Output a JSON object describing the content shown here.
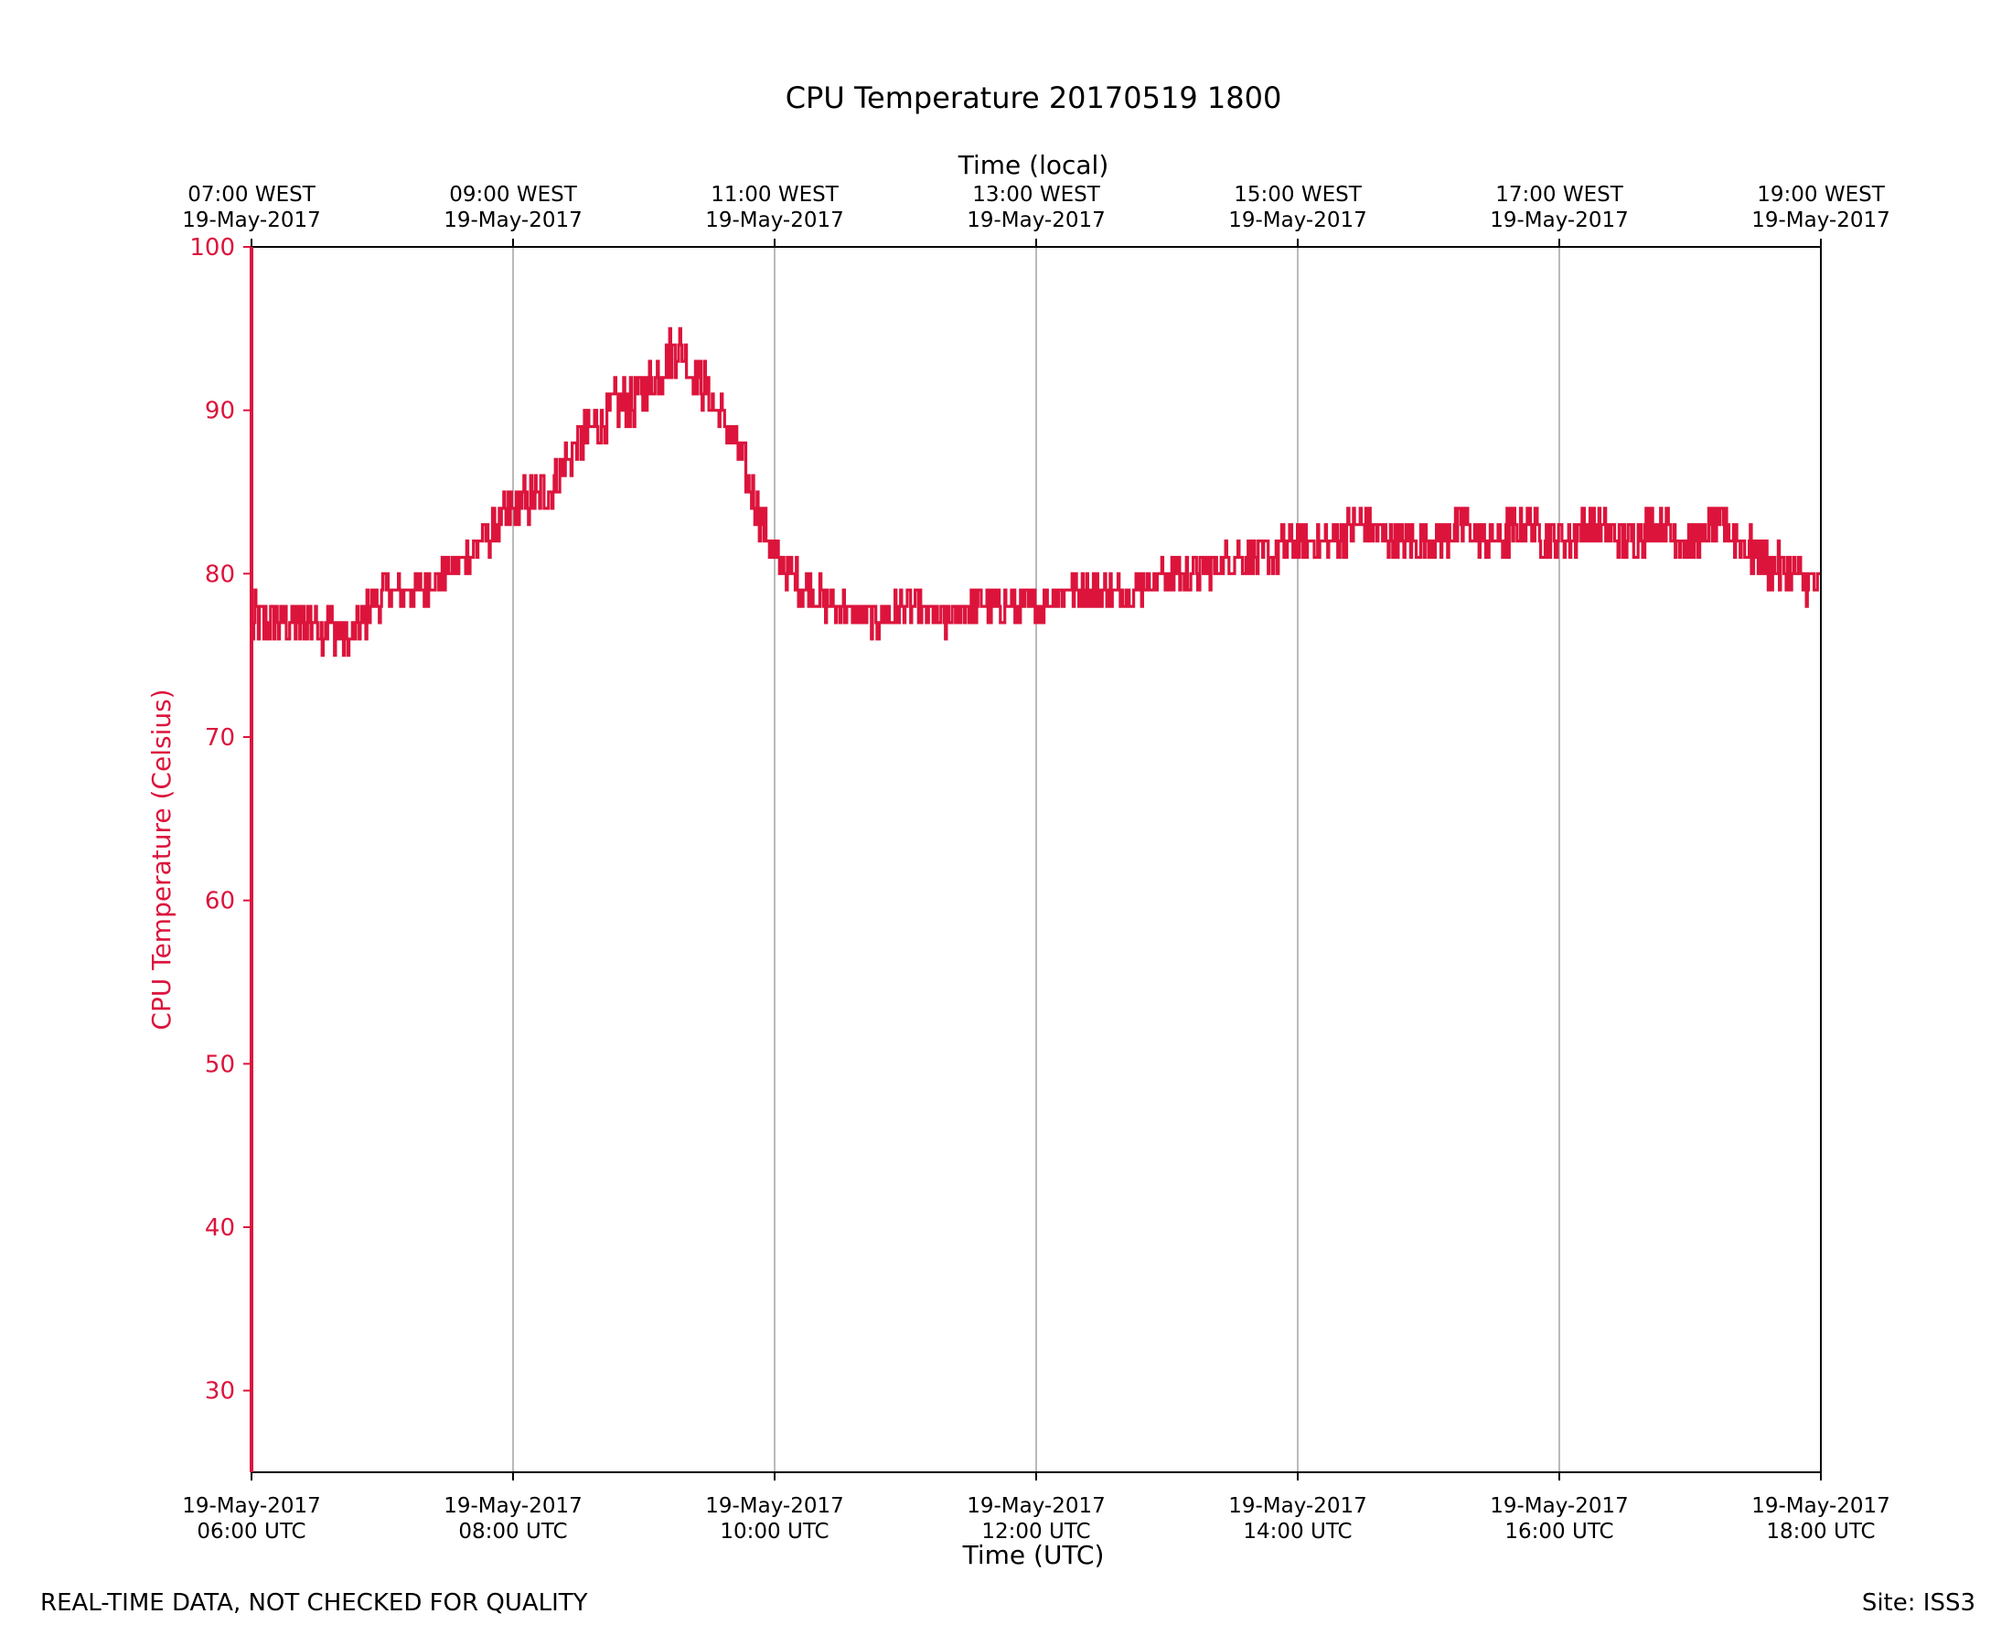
{
  "footer": {
    "disclaimer": "REAL-TIME DATA, NOT CHECKED FOR QUALITY",
    "site": "Site: ISS3"
  },
  "colors": {
    "series": "#dc143c",
    "axis": "#000000",
    "grid": "#a9a9a9"
  },
  "chart_data": {
    "type": "line",
    "title": "CPU Temperature 20170519 1800",
    "xlabel": "Time (UTC)",
    "x2label": "Time (local)",
    "ylabel": "CPU Temperature (Celsius)",
    "grid": "vertical",
    "xlim": [
      6.0,
      18.0
    ],
    "ylim": [
      25,
      100
    ],
    "yticks": [
      30,
      40,
      50,
      60,
      70,
      80,
      90,
      100
    ],
    "xticks": [
      {
        "x": 6,
        "date": "19-May-2017",
        "time": "06:00 UTC",
        "local_time": "07:00 WEST",
        "local_date": "19-May-2017"
      },
      {
        "x": 8,
        "date": "19-May-2017",
        "time": "08:00 UTC",
        "local_time": "09:00 WEST",
        "local_date": "19-May-2017"
      },
      {
        "x": 10,
        "date": "19-May-2017",
        "time": "10:00 UTC",
        "local_time": "11:00 WEST",
        "local_date": "19-May-2017"
      },
      {
        "x": 12,
        "date": "19-May-2017",
        "time": "12:00 UTC",
        "local_time": "13:00 WEST",
        "local_date": "19-May-2017"
      },
      {
        "x": 14,
        "date": "19-May-2017",
        "time": "14:00 UTC",
        "local_time": "15:00 WEST",
        "local_date": "19-May-2017"
      },
      {
        "x": 16,
        "date": "19-May-2017",
        "time": "16:00 UTC",
        "local_time": "17:00 WEST",
        "local_date": "19-May-2017"
      },
      {
        "x": 18,
        "date": "19-May-2017",
        "time": "18:00 UTC",
        "local_time": "19:00 WEST",
        "local_date": "19-May-2017"
      }
    ],
    "series": [
      {
        "name": "CPU Temperature",
        "x": [
          6.0,
          6.25,
          6.5,
          6.75,
          7.0,
          7.25,
          7.5,
          7.75,
          8.0,
          8.25,
          8.5,
          8.75,
          9.0,
          9.25,
          9.5,
          9.75,
          10.0,
          10.25,
          10.5,
          10.75,
          11.0,
          11.25,
          11.5,
          11.75,
          12.0,
          12.25,
          12.5,
          12.75,
          13.0,
          13.25,
          13.5,
          13.75,
          14.0,
          14.25,
          14.5,
          14.75,
          15.0,
          15.25,
          15.5,
          15.75,
          16.0,
          16.25,
          16.5,
          16.75,
          17.0,
          17.25,
          17.5,
          17.75,
          18.0
        ],
        "y": [
          77,
          77,
          77,
          76,
          79,
          79,
          80,
          82,
          84,
          85,
          88,
          90,
          91,
          94,
          91,
          87,
          81,
          79,
          78,
          77,
          78,
          77,
          78,
          78,
          78,
          79,
          79,
          79,
          80,
          80,
          81,
          81,
          82,
          82,
          83,
          82,
          82,
          83,
          82,
          83,
          82,
          83,
          82,
          83,
          82,
          83,
          81,
          80,
          79
        ],
        "noise": [
          1.6,
          1.6,
          1.5,
          1.2,
          1.3,
          1.1,
          1.0,
          1.2,
          1.3,
          1.4,
          1.4,
          1.5,
          1.6,
          1.5,
          1.4,
          1.4,
          1.3,
          1.2,
          1.1,
          1.1,
          1.1,
          1.1,
          1.1,
          1.1,
          1.0,
          1.0,
          1.0,
          1.0,
          1.0,
          1.1,
          1.1,
          1.2,
          1.3,
          1.3,
          1.3,
          1.3,
          1.3,
          1.3,
          1.3,
          1.3,
          1.3,
          1.3,
          1.3,
          1.3,
          1.3,
          1.3,
          1.3,
          1.3,
          1.2
        ]
      }
    ]
  }
}
